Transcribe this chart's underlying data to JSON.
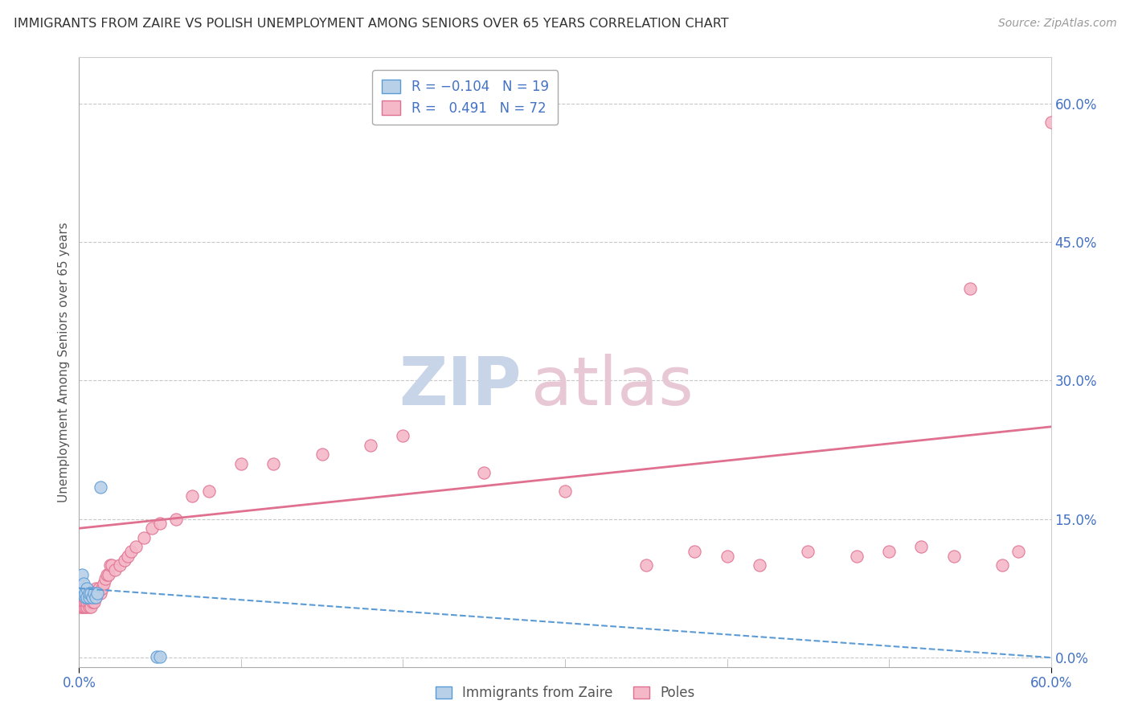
{
  "title": "IMMIGRANTS FROM ZAIRE VS POLISH UNEMPLOYMENT AMONG SENIORS OVER 65 YEARS CORRELATION CHART",
  "source": "Source: ZipAtlas.com",
  "ylabel": "Unemployment Among Seniors over 65 years",
  "xlim": [
    0.0,
    0.6
  ],
  "ylim": [
    -0.01,
    0.65
  ],
  "right_yticks": [
    0.0,
    0.15,
    0.3,
    0.45,
    0.6
  ],
  "right_ytick_labels": [
    "0.0%",
    "15.0%",
    "30.0%",
    "45.0%",
    "60.0%"
  ],
  "xtick_vals": [
    0.0,
    0.6
  ],
  "xtick_labels": [
    "0.0%",
    "60.0%"
  ],
  "color_blue_fill": "#b8d0e8",
  "color_blue_edge": "#5b9bd5",
  "color_pink_fill": "#f4b8c8",
  "color_pink_edge": "#e07090",
  "color_blue_line": "#5b9bd5",
  "color_pink_line": "#e07090",
  "grid_color": "#c8c8c8",
  "background_color": "#ffffff",
  "blue_x": [
    0.001,
    0.002,
    0.002,
    0.003,
    0.003,
    0.004,
    0.004,
    0.005,
    0.005,
    0.006,
    0.006,
    0.007,
    0.008,
    0.009,
    0.01,
    0.011,
    0.013,
    0.048,
    0.05
  ],
  "blue_y": [
    0.07,
    0.09,
    0.07,
    0.075,
    0.08,
    0.065,
    0.07,
    0.065,
    0.075,
    0.065,
    0.07,
    0.07,
    0.065,
    0.07,
    0.065,
    0.07,
    0.185,
    0.001,
    0.001
  ],
  "pink_x": [
    0.001,
    0.001,
    0.001,
    0.002,
    0.002,
    0.002,
    0.003,
    0.003,
    0.003,
    0.003,
    0.004,
    0.004,
    0.004,
    0.005,
    0.005,
    0.005,
    0.005,
    0.006,
    0.006,
    0.006,
    0.007,
    0.007,
    0.007,
    0.008,
    0.008,
    0.008,
    0.009,
    0.009,
    0.01,
    0.01,
    0.011,
    0.012,
    0.013,
    0.014,
    0.015,
    0.016,
    0.017,
    0.018,
    0.019,
    0.02,
    0.022,
    0.025,
    0.028,
    0.03,
    0.032,
    0.035,
    0.04,
    0.045,
    0.05,
    0.06,
    0.07,
    0.08,
    0.1,
    0.12,
    0.15,
    0.18,
    0.2,
    0.25,
    0.3,
    0.35,
    0.38,
    0.4,
    0.42,
    0.45,
    0.48,
    0.5,
    0.52,
    0.54,
    0.55,
    0.57,
    0.58,
    0.6
  ],
  "pink_y": [
    0.055,
    0.065,
    0.07,
    0.055,
    0.06,
    0.065,
    0.055,
    0.06,
    0.065,
    0.07,
    0.055,
    0.06,
    0.065,
    0.055,
    0.06,
    0.065,
    0.07,
    0.055,
    0.06,
    0.065,
    0.055,
    0.065,
    0.07,
    0.06,
    0.065,
    0.07,
    0.06,
    0.07,
    0.065,
    0.075,
    0.07,
    0.075,
    0.07,
    0.075,
    0.08,
    0.085,
    0.09,
    0.09,
    0.1,
    0.1,
    0.095,
    0.1,
    0.105,
    0.11,
    0.115,
    0.12,
    0.13,
    0.14,
    0.145,
    0.15,
    0.175,
    0.18,
    0.21,
    0.21,
    0.22,
    0.23,
    0.24,
    0.2,
    0.18,
    0.1,
    0.115,
    0.11,
    0.1,
    0.115,
    0.11,
    0.115,
    0.12,
    0.11,
    0.4,
    0.1,
    0.115,
    0.58
  ],
  "watermark_zip_color": "#c8d4e8",
  "watermark_atlas_color": "#e8c8d4"
}
